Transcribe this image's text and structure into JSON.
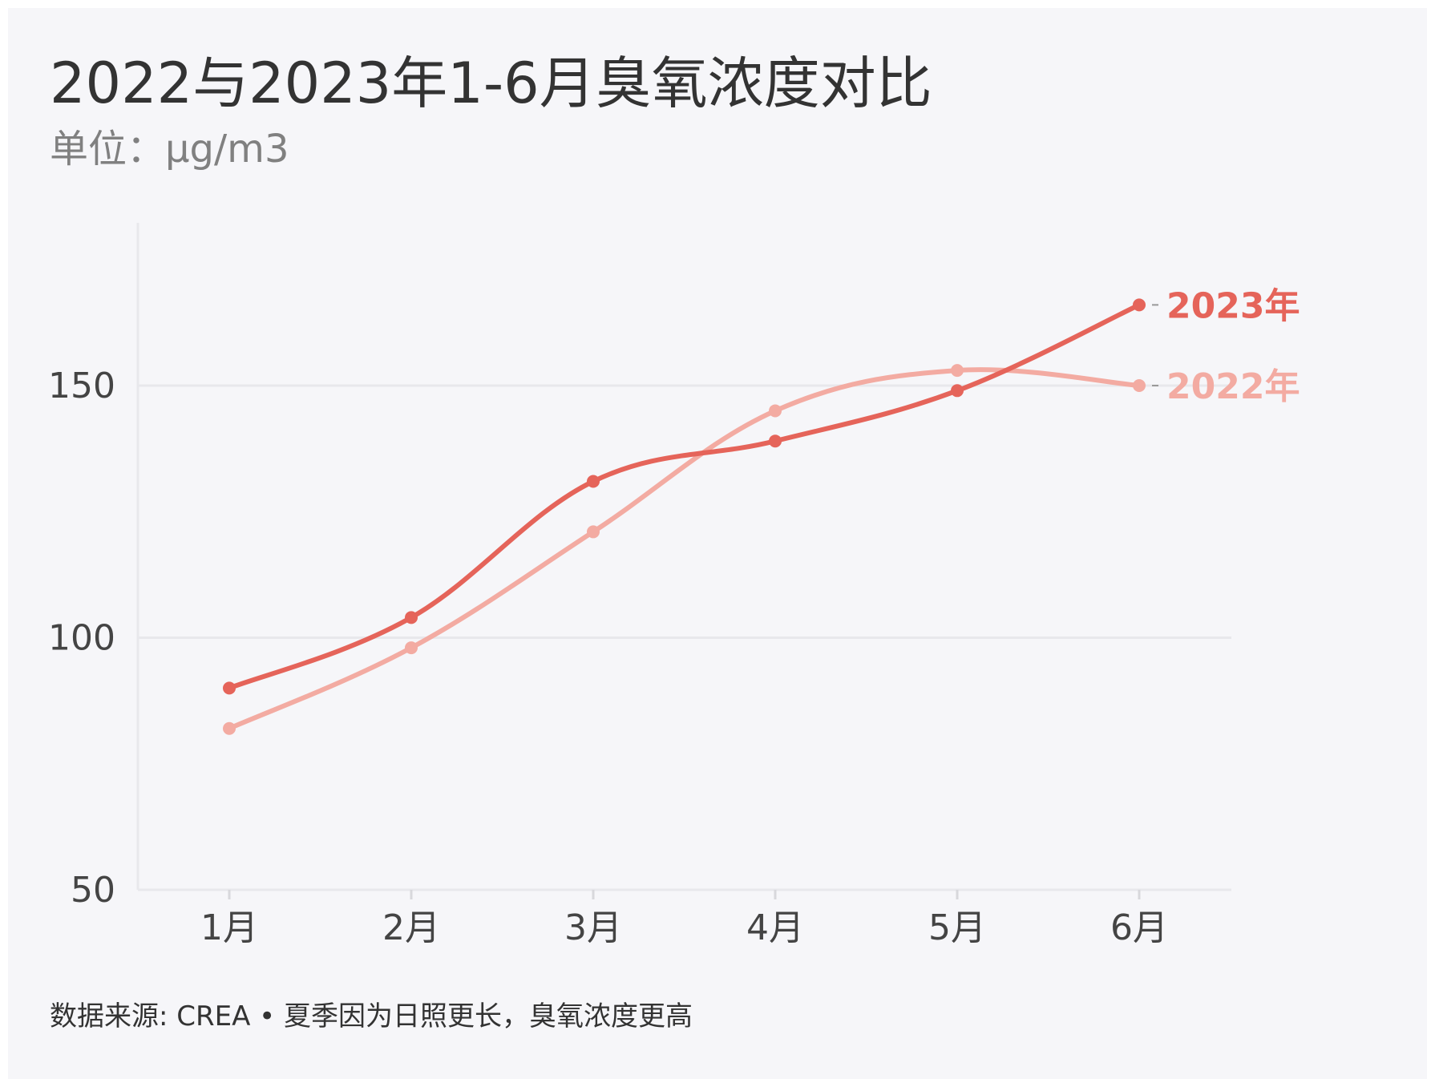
{
  "title": "2022与2023年1-6月臭氧浓度对比",
  "subtitle": "单位：μg/m3",
  "note": "数据来源: CREA • 夏季因为日照更长，臭氧浓度更高",
  "colors": {
    "series_2023": "#e5645a",
    "series_2022": "#f3aba2",
    "grid": "#e8e8ec",
    "background": "#f6f6f9"
  },
  "chart_data": {
    "type": "line",
    "title": "2022与2023年1-6月臭氧浓度对比",
    "subtitle": "单位：μg/m3",
    "categories": [
      "1月",
      "2月",
      "3月",
      "4月",
      "5月",
      "6月"
    ],
    "ylim": [
      50,
      182
    ],
    "yticks": [
      50,
      100,
      150
    ],
    "grid": true,
    "legend": "end-of-line labels",
    "series": [
      {
        "name": "2023年",
        "values": [
          90,
          104,
          131,
          139,
          149,
          166
        ]
      },
      {
        "name": "2022年",
        "values": [
          82,
          98,
          121,
          145,
          153,
          150
        ]
      }
    ]
  }
}
